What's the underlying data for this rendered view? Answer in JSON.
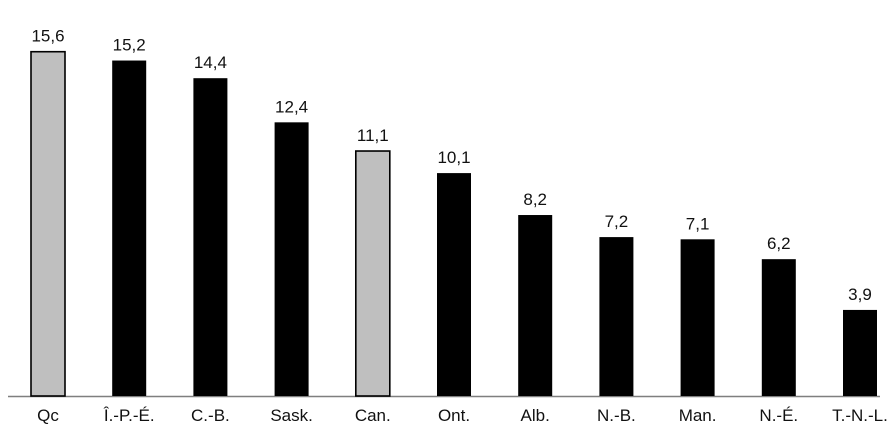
{
  "chart_data": {
    "type": "bar",
    "title": "",
    "xlabel": "",
    "ylabel": "",
    "categories": [
      "Qc",
      "Î.-P.-É.",
      "C.-B.",
      "Sask.",
      "Can.",
      "Ont.",
      "Alb.",
      "N.-B.",
      "Man.",
      "N.-É.",
      "T.-N.-L."
    ],
    "values": [
      15.6,
      15.2,
      14.4,
      12.4,
      11.1,
      10.1,
      8.2,
      7.2,
      7.1,
      6.2,
      3.9
    ],
    "value_labels": [
      "15,6",
      "15,2",
      "14,4",
      "12,4",
      "11,1",
      "10,1",
      "8,2",
      "7,2",
      "7,1",
      "6,2",
      "3,9"
    ],
    "highlighted": [
      "Qc",
      "Can."
    ],
    "ylim": [
      0,
      16.5
    ],
    "grid": false,
    "legend": "none",
    "colors": {
      "default_bar": "#000000",
      "highlight_bar": "#bfbfbf",
      "highlight_stroke": "#000000",
      "axis": "#7f7f7f"
    }
  }
}
